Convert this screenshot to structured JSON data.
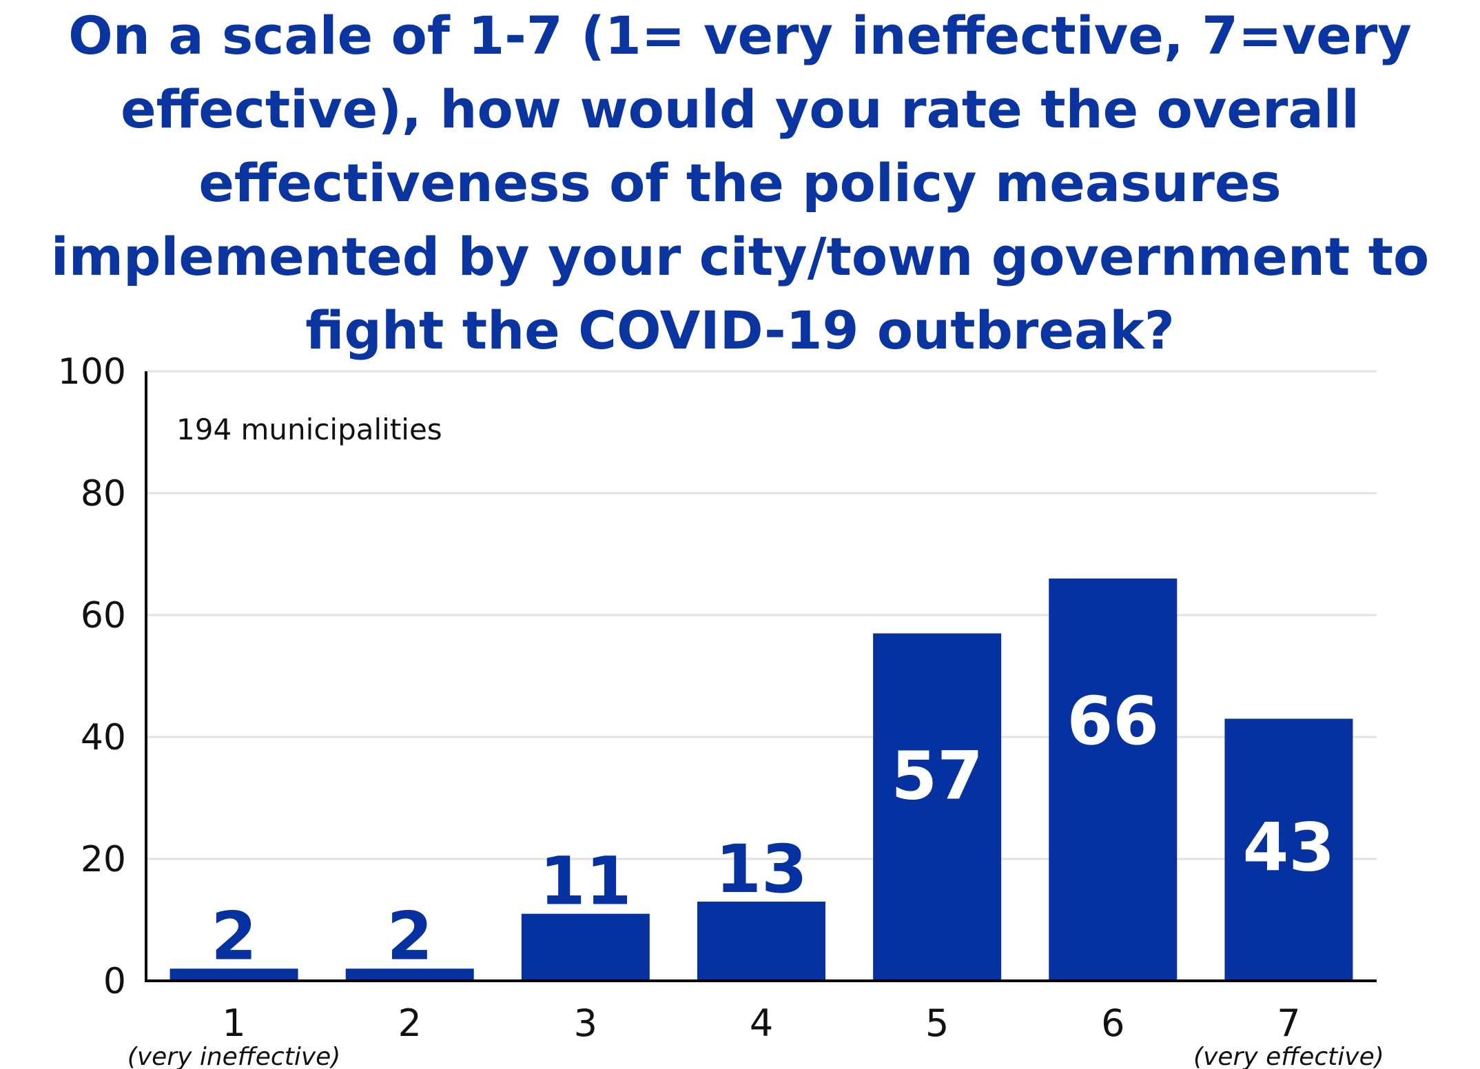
{
  "chart_data": {
    "type": "bar",
    "title_lines": [
      "On a scale of 1-7 (1= very ineffective, 7=very",
      "effective), how would you rate the overall",
      "effectiveness of the policy measures",
      "implemented by your city/town government to",
      "fight the COVID-19 outbreak?"
    ],
    "note": "194 municipalities",
    "categories": [
      "1",
      "2",
      "3",
      "4",
      "5",
      "6",
      "7"
    ],
    "category_sublabels": [
      "(very ineffective)",
      "",
      "",
      "",
      "",
      "",
      "(very effective)"
    ],
    "values": [
      2,
      2,
      11,
      13,
      57,
      66,
      43
    ],
    "xlabel": "",
    "ylabel": "",
    "ylim": [
      0,
      100
    ],
    "yticks": [
      0,
      20,
      40,
      60,
      80,
      100
    ],
    "grid": true,
    "colors": {
      "bar": "#0532a0",
      "title": "#0a34a0",
      "grid": "#e2e2e2",
      "axis": "#000000",
      "label_inside": "#ffffff",
      "label_outside": "#0532a0"
    }
  }
}
